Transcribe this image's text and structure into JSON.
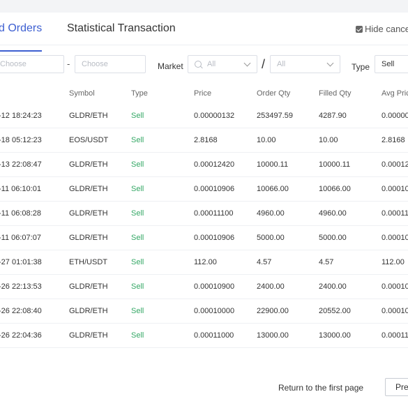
{
  "tabs": [
    {
      "label": "d Orders",
      "active": true
    },
    {
      "label": "Statistical Transaction",
      "active": false
    }
  ],
  "hide_cancel": {
    "label": "Hide cance",
    "checked": true
  },
  "filters": {
    "date_start_placeholder": "Choose",
    "date_separator": "-",
    "date_end_placeholder": "Choose",
    "market_label": "Market",
    "market_base_value": "All",
    "market_separator": "/",
    "market_quote_value": "All",
    "type_label": "Type",
    "type_value": "Sell"
  },
  "table": {
    "headers": [
      "Symbol",
      "Type",
      "Price",
      "Order Qty",
      "Filled Qty",
      "Avg Pric"
    ],
    "rows": [
      {
        "time": "-12 18:24:23",
        "symbol": "GLDR/ETH",
        "type": "Sell",
        "price": "0.00000132",
        "order_qty": "253497.59",
        "filled_qty": "4287.90",
        "avg": "0.00000"
      },
      {
        "time": "-18 05:12:23",
        "symbol": "EOS/USDT",
        "type": "Sell",
        "price": "2.8168",
        "order_qty": "10.00",
        "filled_qty": "10.00",
        "avg": "2.8168"
      },
      {
        "time": "-13 22:08:47",
        "symbol": "GLDR/ETH",
        "type": "Sell",
        "price": "0.00012420",
        "order_qty": "10000.11",
        "filled_qty": "10000.11",
        "avg": "0.00012"
      },
      {
        "time": "-11 06:10:01",
        "symbol": "GLDR/ETH",
        "type": "Sell",
        "price": "0.00010906",
        "order_qty": "10066.00",
        "filled_qty": "10066.00",
        "avg": "0.00010"
      },
      {
        "time": "-11 06:08:28",
        "symbol": "GLDR/ETH",
        "type": "Sell",
        "price": "0.00011100",
        "order_qty": "4960.00",
        "filled_qty": "4960.00",
        "avg": "0.00011"
      },
      {
        "time": "-11 06:07:07",
        "symbol": "GLDR/ETH",
        "type": "Sell",
        "price": "0.00010906",
        "order_qty": "5000.00",
        "filled_qty": "5000.00",
        "avg": "0.00010"
      },
      {
        "time": "-27 01:01:38",
        "symbol": "ETH/USDT",
        "type": "Sell",
        "price": "112.00",
        "order_qty": "4.57",
        "filled_qty": "4.57",
        "avg": "112.00"
      },
      {
        "time": "-26 22:13:53",
        "symbol": "GLDR/ETH",
        "type": "Sell",
        "price": "0.00010900",
        "order_qty": "2400.00",
        "filled_qty": "2400.00",
        "avg": "0.00010"
      },
      {
        "time": "-26 22:08:40",
        "symbol": "GLDR/ETH",
        "type": "Sell",
        "price": "0.00010000",
        "order_qty": "22900.00",
        "filled_qty": "20552.00",
        "avg": "0.00010"
      },
      {
        "time": "-26 22:04:36",
        "symbol": "GLDR/ETH",
        "type": "Sell",
        "price": "0.00011000",
        "order_qty": "13000.00",
        "filled_qty": "13000.00",
        "avg": "0.00011"
      }
    ]
  },
  "pagination": {
    "first_page_label": "Return to the first page",
    "prev_label": "Pre"
  },
  "colors": {
    "accent": "#3d5fd1",
    "sell": "#35a866"
  }
}
